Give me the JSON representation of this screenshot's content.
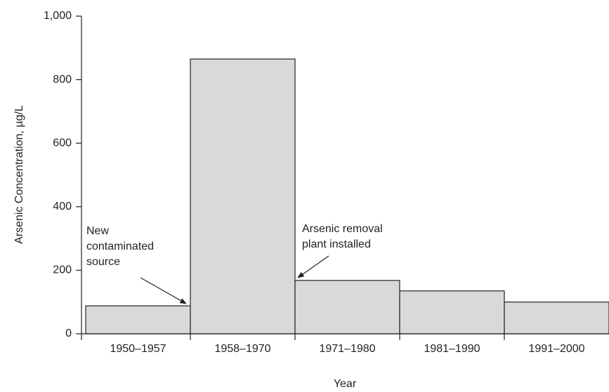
{
  "chart_data": {
    "type": "bar",
    "y_label": "Arsenic Concentration, µg/L",
    "x_label": "Year",
    "categories": [
      "1950–1957",
      "1958–1970",
      "1971–1980",
      "1981–1990",
      "1991–2000"
    ],
    "values": [
      88,
      865,
      168,
      135,
      100
    ],
    "color": "#d9d9d9",
    "ylim": [
      0,
      1000
    ],
    "yticks": [
      0,
      200,
      400,
      600,
      800,
      {
        "value": 1000,
        "label": "1,000"
      }
    ],
    "annotations": [
      {
        "lines": [
          "New",
          "contaminated",
          "source"
        ]
      },
      {
        "lines": [
          "Arsenic removal",
          "plant installed"
        ]
      }
    ]
  }
}
